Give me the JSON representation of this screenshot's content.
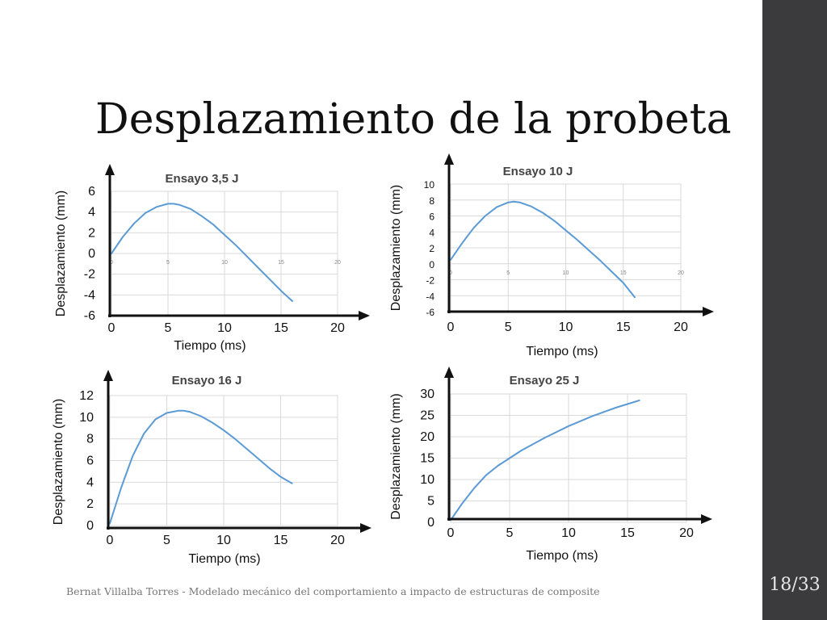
{
  "slide": {
    "title": "Desplazamiento de la probeta",
    "footer": "Bernat Villalba Torres - Modelado mecánico del comportamiento a impacto de estructuras de composite",
    "page": "18/33"
  },
  "colors": {
    "line": "#5b9bd5",
    "grid": "#d9d9d9",
    "sidebar": "#3b3b3d"
  },
  "chart_data": [
    {
      "type": "line",
      "title": "Ensayo 3,5 J",
      "xlabel": "Tiempo (ms)",
      "ylabel": "Desplazamiento (mm)",
      "xlim": [
        0,
        20
      ],
      "ylim": [
        -6,
        6
      ],
      "xticks": [
        0,
        5,
        10,
        15,
        20
      ],
      "yticks": [
        6,
        4,
        2,
        0,
        -2,
        -4,
        -6
      ],
      "inner_xticks": [
        0,
        5,
        10,
        15,
        20
      ],
      "x": [
        0,
        1,
        2,
        3,
        4,
        5,
        5.5,
        6,
        7,
        8,
        9,
        10,
        11,
        12,
        13,
        14,
        15,
        16
      ],
      "y": [
        0,
        1.6,
        2.9,
        3.9,
        4.5,
        4.8,
        4.8,
        4.7,
        4.3,
        3.6,
        2.8,
        1.8,
        0.8,
        -0.3,
        -1.4,
        -2.5,
        -3.6,
        -4.6
      ]
    },
    {
      "type": "line",
      "title": "Ensayo 10 J",
      "xlabel": "Tiempo (ms)",
      "ylabel": "Desplazamiento (mm)",
      "xlim": [
        0,
        20
      ],
      "ylim": [
        -6,
        10
      ],
      "xticks": [
        0,
        5,
        10,
        15,
        20
      ],
      "yticks": [
        10,
        8,
        6,
        4,
        2,
        0,
        -2,
        -4,
        -6
      ],
      "inner_xticks": [
        0,
        5,
        10,
        15,
        20
      ],
      "x": [
        0,
        1,
        2,
        3,
        4,
        5,
        5.5,
        6,
        7,
        8,
        9,
        10,
        11,
        12,
        13,
        14,
        15,
        16
      ],
      "y": [
        0.5,
        2.6,
        4.5,
        6.0,
        7.1,
        7.7,
        7.8,
        7.7,
        7.2,
        6.4,
        5.4,
        4.2,
        3.0,
        1.7,
        0.4,
        -1.0,
        -2.4,
        -4.2
      ]
    },
    {
      "type": "line",
      "title": "Ensayo 16 J",
      "xlabel": "Tiempo (ms)",
      "ylabel": "Desplazamiento (mm)",
      "xlim": [
        0,
        20
      ],
      "ylim": [
        0,
        12
      ],
      "xticks": [
        0,
        5,
        10,
        15,
        20
      ],
      "yticks": [
        12,
        10,
        8,
        6,
        4,
        2,
        0
      ],
      "x": [
        0,
        1,
        2,
        3,
        4,
        5,
        6,
        6.5,
        7,
        8,
        9,
        10,
        11,
        12,
        13,
        14,
        15,
        16
      ],
      "y": [
        0.2,
        3.5,
        6.4,
        8.5,
        9.8,
        10.4,
        10.6,
        10.6,
        10.5,
        10.1,
        9.5,
        8.8,
        8.0,
        7.1,
        6.2,
        5.3,
        4.5,
        3.9
      ]
    },
    {
      "type": "line",
      "title": "Ensayo 25 J",
      "xlabel": "Tiempo (ms)",
      "ylabel": "Desplazamiento (mm)",
      "xlim": [
        0,
        20
      ],
      "ylim": [
        0,
        30
      ],
      "xticks": [
        0,
        5,
        10,
        15,
        20
      ],
      "yticks": [
        30,
        25,
        20,
        15,
        10,
        5,
        0
      ],
      "x": [
        0,
        1,
        2,
        3,
        4,
        5,
        6,
        8,
        10,
        12,
        14,
        16
      ],
      "y": [
        0.5,
        4.5,
        8.0,
        11.0,
        13.2,
        15.0,
        16.8,
        19.8,
        22.5,
        24.8,
        26.8,
        28.5
      ]
    }
  ]
}
